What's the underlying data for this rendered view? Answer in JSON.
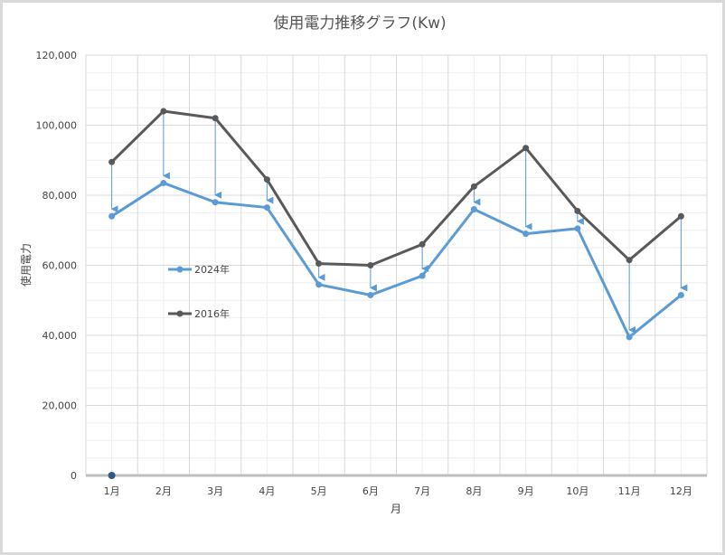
{
  "chart_data": {
    "type": "line",
    "title": "使用電力推移グラフ(Kw)",
    "xlabel": "月",
    "ylabel": "使用電力",
    "categories": [
      "1月",
      "2月",
      "3月",
      "4月",
      "5月",
      "6月",
      "7月",
      "8月",
      "9月",
      "10月",
      "11月",
      "12月"
    ],
    "ylim": [
      0,
      120000
    ],
    "yticks": [
      "0",
      "20,000",
      "40,000",
      "60,000",
      "80,000",
      "100,000",
      "120,000"
    ],
    "grid": true,
    "legend_position": "left-middle",
    "series": [
      {
        "name": "2024年",
        "color": "#5b9bd5",
        "values": [
          74000,
          83500,
          78000,
          76500,
          54500,
          51500,
          57000,
          76000,
          69000,
          70500,
          39500,
          51500
        ]
      },
      {
        "name": "2016年",
        "color": "#595959",
        "values": [
          89500,
          104000,
          102000,
          84500,
          60500,
          60000,
          66000,
          82500,
          93500,
          75500,
          61500,
          74000
        ]
      }
    ],
    "arrow_color": "#5b9bd5",
    "marker_color": "#2e5a88"
  }
}
